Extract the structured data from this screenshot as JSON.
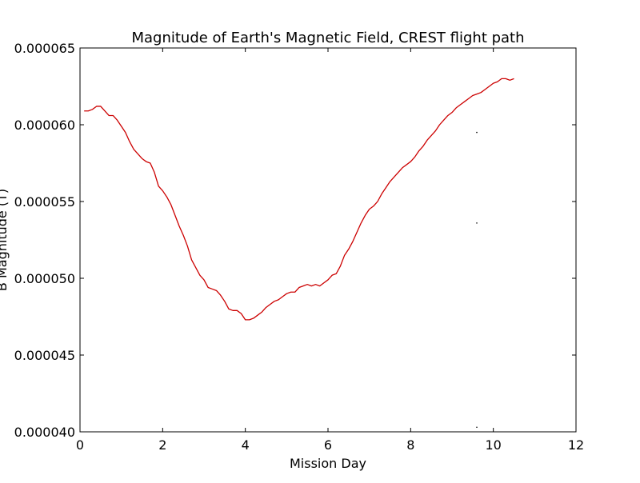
{
  "chart_data": {
    "type": "line",
    "title": "Magnitude of Earth's Magnetic Field, CREST flight path",
    "xlabel": "Mission Day",
    "ylabel": "B Magnitude (T)",
    "xlim": [
      0,
      12
    ],
    "ylim": [
      4e-05,
      6.5e-05
    ],
    "x_ticks": [
      "0",
      "2",
      "4",
      "6",
      "8",
      "10",
      "12"
    ],
    "y_ticks": [
      "0.000040",
      "0.000045",
      "0.000050",
      "0.000055",
      "0.000060",
      "0.000065"
    ],
    "grid": false,
    "legend": "none",
    "series": [
      {
        "color": "#cc0000",
        "x": [
          0.1,
          0.2,
          0.3,
          0.4,
          0.5,
          0.6,
          0.7,
          0.8,
          0.9,
          1.0,
          1.1,
          1.2,
          1.3,
          1.4,
          1.5,
          1.6,
          1.7,
          1.8,
          1.9,
          2.0,
          2.1,
          2.2,
          2.3,
          2.4,
          2.5,
          2.6,
          2.7,
          2.8,
          2.9,
          3.0,
          3.1,
          3.2,
          3.3,
          3.4,
          3.5,
          3.6,
          3.7,
          3.8,
          3.9,
          4.0,
          4.1,
          4.2,
          4.3,
          4.4,
          4.5,
          4.6,
          4.7,
          4.8,
          4.9,
          5.0,
          5.1,
          5.2,
          5.3,
          5.4,
          5.5,
          5.6,
          5.7,
          5.8,
          5.9,
          6.0,
          6.1,
          6.2,
          6.3,
          6.4,
          6.5,
          6.6,
          6.7,
          6.8,
          6.9,
          7.0,
          7.1,
          7.2,
          7.3,
          7.4,
          7.5,
          7.6,
          7.7,
          7.8,
          7.9,
          8.0,
          8.1,
          8.2,
          8.3,
          8.4,
          8.5,
          8.6,
          8.7,
          8.8,
          8.9,
          9.0,
          9.1,
          9.2,
          9.3,
          9.4,
          9.5,
          9.6,
          9.7,
          9.8,
          9.9,
          10.0,
          10.1,
          10.2,
          10.3,
          10.4,
          10.5
        ],
        "y": [
          6.09e-05,
          6.09e-05,
          6.1e-05,
          6.12e-05,
          6.12e-05,
          6.09e-05,
          6.06e-05,
          6.06e-05,
          6.03e-05,
          5.99e-05,
          5.95e-05,
          5.89e-05,
          5.84e-05,
          5.81e-05,
          5.78e-05,
          5.76e-05,
          5.75e-05,
          5.69e-05,
          5.6e-05,
          5.57e-05,
          5.53e-05,
          5.48e-05,
          5.41e-05,
          5.34e-05,
          5.28e-05,
          5.21e-05,
          5.12e-05,
          5.07e-05,
          5.02e-05,
          4.99e-05,
          4.94e-05,
          4.93e-05,
          4.92e-05,
          4.89e-05,
          4.85e-05,
          4.8e-05,
          4.79e-05,
          4.79e-05,
          4.77e-05,
          4.73e-05,
          4.73e-05,
          4.74e-05,
          4.76e-05,
          4.78e-05,
          4.81e-05,
          4.83e-05,
          4.85e-05,
          4.86e-05,
          4.88e-05,
          4.9e-05,
          4.91e-05,
          4.91e-05,
          4.94e-05,
          4.95e-05,
          4.96e-05,
          4.95e-05,
          4.96e-05,
          4.95e-05,
          4.97e-05,
          4.99e-05,
          5.02e-05,
          5.03e-05,
          5.08e-05,
          5.15e-05,
          5.19e-05,
          5.24e-05,
          5.3e-05,
          5.36e-05,
          5.41e-05,
          5.45e-05,
          5.47e-05,
          5.5e-05,
          5.55e-05,
          5.59e-05,
          5.63e-05,
          5.66e-05,
          5.69e-05,
          5.72e-05,
          5.74e-05,
          5.76e-05,
          5.79e-05,
          5.83e-05,
          5.86e-05,
          5.9e-05,
          5.93e-05,
          5.96e-05,
          6e-05,
          6.03e-05,
          6.06e-05,
          6.08e-05,
          6.11e-05,
          6.13e-05,
          6.15e-05,
          6.17e-05,
          6.19e-05,
          6.2e-05,
          6.21e-05,
          6.23e-05,
          6.25e-05,
          6.27e-05,
          6.28e-05,
          6.3e-05,
          6.3e-05,
          6.29e-05,
          6.3e-05
        ]
      }
    ],
    "stray_points": [
      {
        "x": 9.6,
        "y": 5.95e-05
      },
      {
        "x": 9.6,
        "y": 5.36e-05
      },
      {
        "x": 9.6,
        "y": 4.03e-05
      }
    ]
  }
}
